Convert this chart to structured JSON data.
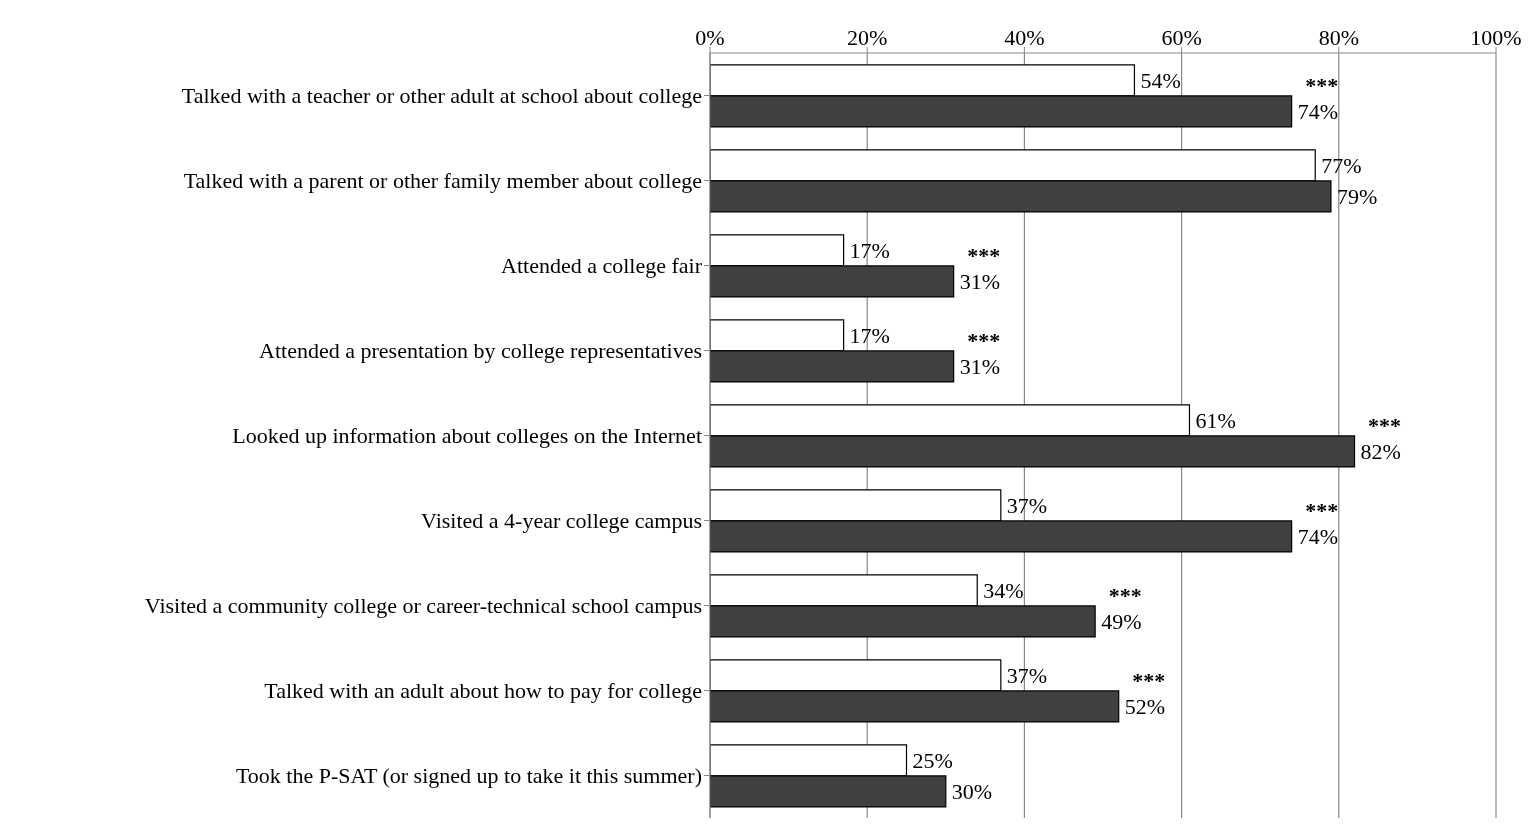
{
  "chart_data": {
    "type": "bar",
    "orientation": "horizontal",
    "categories": [
      "Talked with a teacher or other adult at school about college",
      "Talked with a parent or other family member about college",
      "Attended a college fair",
      "Attended a presentation by college representatives",
      "Looked up information about colleges on the Internet",
      "Visited a 4-year college campus",
      "Visited a community college or career-technical school campus",
      "Talked with an adult about how to pay for college",
      "Took the P-SAT (or signed up to take it this summer)"
    ],
    "series": [
      {
        "color": "#ffffff",
        "values": [
          54,
          77,
          17,
          17,
          61,
          37,
          34,
          37,
          25
        ],
        "value_labels": [
          "54%",
          "77%",
          "17%",
          "17%",
          "61%",
          "37%",
          "34%",
          "37%",
          "25%"
        ]
      },
      {
        "color": "#404040",
        "values": [
          74,
          79,
          31,
          31,
          82,
          74,
          49,
          52,
          30
        ],
        "value_labels": [
          "74%",
          "79%",
          "31%",
          "31%",
          "82%",
          "74%",
          "49%",
          "52%",
          "30%"
        ]
      }
    ],
    "xlim": [
      0,
      100
    ],
    "xticks": [
      {
        "value": 0,
        "label": "0%"
      },
      {
        "value": 20,
        "label": "20%"
      },
      {
        "value": 40,
        "label": "40%"
      },
      {
        "value": 60,
        "label": "60%"
      },
      {
        "value": 80,
        "label": "80%"
      },
      {
        "value": 100,
        "label": "100%"
      }
    ],
    "grid": "x",
    "legend": false,
    "annotations": [
      {
        "text": "***",
        "x": 74,
        "y": "Talked with a teacher or other adult at school about college"
      },
      {
        "text": "***",
        "x": 31,
        "y": "Attended a college fair"
      },
      {
        "text": "***",
        "x": 31,
        "y": "Attended a presentation by college representatives"
      },
      {
        "text": "***",
        "x": 82,
        "y": "Looked up information about colleges on the Internet"
      },
      {
        "text": "***",
        "x": 74,
        "y": "Visited a 4-year college campus"
      },
      {
        "text": "***",
        "x": 49,
        "y": "Visited a community college or career-technical school campus"
      },
      {
        "text": "***",
        "x": 52,
        "y": "Talked with an adult about how to pay for college"
      }
    ]
  }
}
